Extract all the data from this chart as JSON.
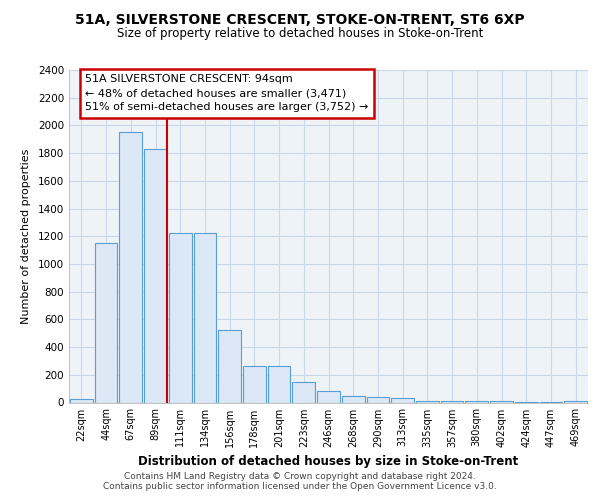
{
  "title_line1": "51A, SILVERSTONE CRESCENT, STOKE-ON-TRENT, ST6 6XP",
  "title_line2": "Size of property relative to detached houses in Stoke-on-Trent",
  "xlabel": "Distribution of detached houses by size in Stoke-on-Trent",
  "ylabel": "Number of detached properties",
  "footnote1": "Contains HM Land Registry data © Crown copyright and database right 2024.",
  "footnote2": "Contains public sector information licensed under the Open Government Licence v3.0.",
  "bar_labels": [
    "22sqm",
    "44sqm",
    "67sqm",
    "89sqm",
    "111sqm",
    "134sqm",
    "156sqm",
    "178sqm",
    "201sqm",
    "223sqm",
    "246sqm",
    "268sqm",
    "290sqm",
    "313sqm",
    "335sqm",
    "357sqm",
    "380sqm",
    "402sqm",
    "424sqm",
    "447sqm",
    "469sqm"
  ],
  "bar_values": [
    25,
    1150,
    1950,
    1830,
    1220,
    1220,
    520,
    265,
    265,
    150,
    80,
    45,
    38,
    30,
    10,
    10,
    8,
    8,
    5,
    5,
    10
  ],
  "bar_color": "#dce8f5",
  "bar_edge_color": "#5a9fd4",
  "marker_line_color": "#cc0000",
  "annotation_text_line1": "51A SILVERSTONE CRESCENT: 94sqm",
  "annotation_text_line2": "← 48% of detached houses are smaller (3,471)",
  "annotation_text_line3": "51% of semi-detached houses are larger (3,752) →",
  "annotation_box_color": "#cc0000",
  "grid_color": "#c8d8e8",
  "ylim": [
    0,
    2400
  ],
  "yticks": [
    0,
    200,
    400,
    600,
    800,
    1000,
    1200,
    1400,
    1600,
    1800,
    2000,
    2200,
    2400
  ]
}
